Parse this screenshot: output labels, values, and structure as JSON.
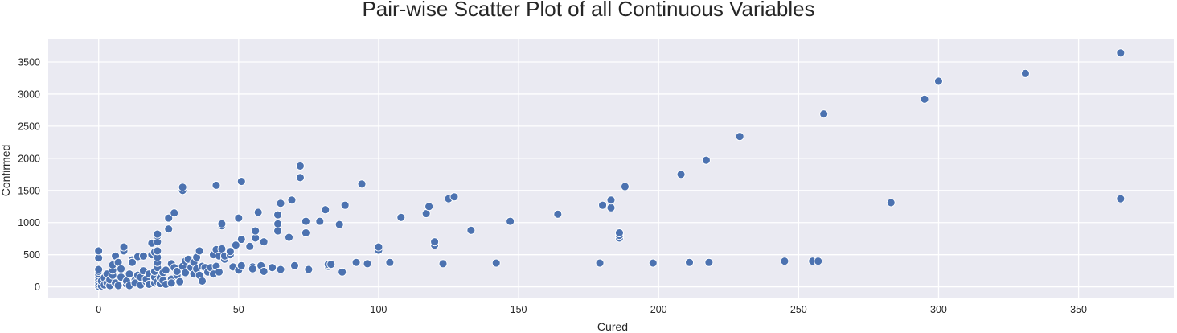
{
  "chart_data": {
    "type": "scatter",
    "title": "Pair-wise Scatter Plot of all Continuous Variables",
    "xlabel": "Cured",
    "ylabel": "Confirmed",
    "xlim": [
      -18,
      384
    ],
    "ylim": [
      -180,
      3850
    ],
    "xticks": [
      0,
      50,
      100,
      150,
      200,
      250,
      300,
      350
    ],
    "yticks": [
      0,
      500,
      1000,
      1500,
      2000,
      2500,
      3000,
      3500
    ],
    "grid": true,
    "colors": {
      "point": "#4c72b0",
      "plot_background": "#eaeaf2",
      "grid": "#ffffff"
    },
    "points": [
      [
        0,
        0
      ],
      [
        0,
        10
      ],
      [
        0,
        40
      ],
      [
        0,
        80
      ],
      [
        0,
        120
      ],
      [
        0,
        160
      ],
      [
        0,
        200
      ],
      [
        0,
        240
      ],
      [
        0,
        270
      ],
      [
        0,
        450
      ],
      [
        0,
        560
      ],
      [
        1,
        15
      ],
      [
        1,
        90
      ],
      [
        2,
        30
      ],
      [
        2,
        140
      ],
      [
        3,
        60
      ],
      [
        3,
        200
      ],
      [
        4,
        20
      ],
      [
        4,
        110
      ],
      [
        5,
        180
      ],
      [
        5,
        260
      ],
      [
        5,
        340
      ],
      [
        6,
        480
      ],
      [
        6,
        60
      ],
      [
        7,
        380
      ],
      [
        7,
        20
      ],
      [
        8,
        150
      ],
      [
        8,
        280
      ],
      [
        9,
        560
      ],
      [
        9,
        620
      ],
      [
        10,
        40
      ],
      [
        10,
        90
      ],
      [
        11,
        200
      ],
      [
        11,
        20
      ],
      [
        12,
        420
      ],
      [
        12,
        380
      ],
      [
        13,
        100
      ],
      [
        13,
        60
      ],
      [
        14,
        180
      ],
      [
        14,
        470
      ],
      [
        15,
        30
      ],
      [
        15,
        150
      ],
      [
        16,
        250
      ],
      [
        16,
        480
      ],
      [
        17,
        80
      ],
      [
        17,
        120
      ],
      [
        18,
        40
      ],
      [
        18,
        200
      ],
      [
        19,
        500
      ],
      [
        19,
        680
      ],
      [
        20,
        60
      ],
      [
        20,
        150
      ],
      [
        20,
        240
      ],
      [
        20,
        540
      ],
      [
        21,
        300
      ],
      [
        21,
        380
      ],
      [
        21,
        460
      ],
      [
        21,
        560
      ],
      [
        21,
        700
      ],
      [
        21,
        790
      ],
      [
        21,
        820
      ],
      [
        21,
        80
      ],
      [
        22,
        50
      ],
      [
        22,
        140
      ],
      [
        23,
        220
      ],
      [
        23,
        100
      ],
      [
        24,
        40
      ],
      [
        24,
        260
      ],
      [
        25,
        900
      ],
      [
        25,
        1070
      ],
      [
        26,
        360
      ],
      [
        26,
        120
      ],
      [
        26,
        60
      ],
      [
        27,
        1150
      ],
      [
        27,
        300
      ],
      [
        28,
        180
      ],
      [
        28,
        240
      ],
      [
        29,
        80
      ],
      [
        30,
        1500
      ],
      [
        30,
        1550
      ],
      [
        30,
        320
      ],
      [
        31,
        220
      ],
      [
        31,
        400
      ],
      [
        32,
        430
      ],
      [
        33,
        300
      ],
      [
        34,
        200
      ],
      [
        34,
        380
      ],
      [
        35,
        460
      ],
      [
        35,
        280
      ],
      [
        36,
        560
      ],
      [
        36,
        180
      ],
      [
        37,
        90
      ],
      [
        37,
        320
      ],
      [
        38,
        300
      ],
      [
        39,
        230
      ],
      [
        40,
        300
      ],
      [
        41,
        200
      ],
      [
        41,
        500
      ],
      [
        42,
        1580
      ],
      [
        42,
        580
      ],
      [
        42,
        320
      ],
      [
        43,
        480
      ],
      [
        43,
        230
      ],
      [
        44,
        950
      ],
      [
        44,
        980
      ],
      [
        44,
        590
      ],
      [
        45,
        430
      ],
      [
        45,
        480
      ],
      [
        47,
        500
      ],
      [
        47,
        550
      ],
      [
        48,
        310
      ],
      [
        49,
        650
      ],
      [
        50,
        1070
      ],
      [
        50,
        260
      ],
      [
        51,
        740
      ],
      [
        51,
        1640
      ],
      [
        51,
        330
      ],
      [
        54,
        630
      ],
      [
        55,
        310
      ],
      [
        55,
        280
      ],
      [
        56,
        760
      ],
      [
        56,
        870
      ],
      [
        57,
        1160
      ],
      [
        58,
        330
      ],
      [
        59,
        700
      ],
      [
        59,
        240
      ],
      [
        62,
        300
      ],
      [
        64,
        870
      ],
      [
        64,
        980
      ],
      [
        64,
        1120
      ],
      [
        65,
        1300
      ],
      [
        65,
        270
      ],
      [
        68,
        770
      ],
      [
        69,
        1350
      ],
      [
        70,
        330
      ],
      [
        72,
        1700
      ],
      [
        72,
        1880
      ],
      [
        74,
        840
      ],
      [
        74,
        1020
      ],
      [
        75,
        270
      ],
      [
        79,
        1020
      ],
      [
        81,
        1200
      ],
      [
        82,
        320
      ],
      [
        82,
        350
      ],
      [
        83,
        350
      ],
      [
        86,
        970
      ],
      [
        87,
        230
      ],
      [
        88,
        1270
      ],
      [
        92,
        380
      ],
      [
        94,
        1600
      ],
      [
        96,
        360
      ],
      [
        100,
        570
      ],
      [
        100,
        620
      ],
      [
        104,
        380
      ],
      [
        108,
        1080
      ],
      [
        117,
        1140
      ],
      [
        118,
        1250
      ],
      [
        120,
        650
      ],
      [
        120,
        700
      ],
      [
        123,
        360
      ],
      [
        125,
        1370
      ],
      [
        127,
        1400
      ],
      [
        133,
        880
      ],
      [
        142,
        370
      ],
      [
        147,
        1020
      ],
      [
        164,
        1130
      ],
      [
        179,
        370
      ],
      [
        180,
        1270
      ],
      [
        183,
        1230
      ],
      [
        183,
        1350
      ],
      [
        186,
        760
      ],
      [
        186,
        800
      ],
      [
        186,
        840
      ],
      [
        188,
        1560
      ],
      [
        198,
        370
      ],
      [
        208,
        1750
      ],
      [
        211,
        380
      ],
      [
        217,
        1970
      ],
      [
        218,
        380
      ],
      [
        229,
        2340
      ],
      [
        245,
        400
      ],
      [
        255,
        400
      ],
      [
        257,
        400
      ],
      [
        259,
        2690
      ],
      [
        283,
        1310
      ],
      [
        295,
        2920
      ],
      [
        300,
        3200
      ],
      [
        331,
        3320
      ],
      [
        365,
        3640
      ],
      [
        365,
        1370
      ]
    ]
  }
}
